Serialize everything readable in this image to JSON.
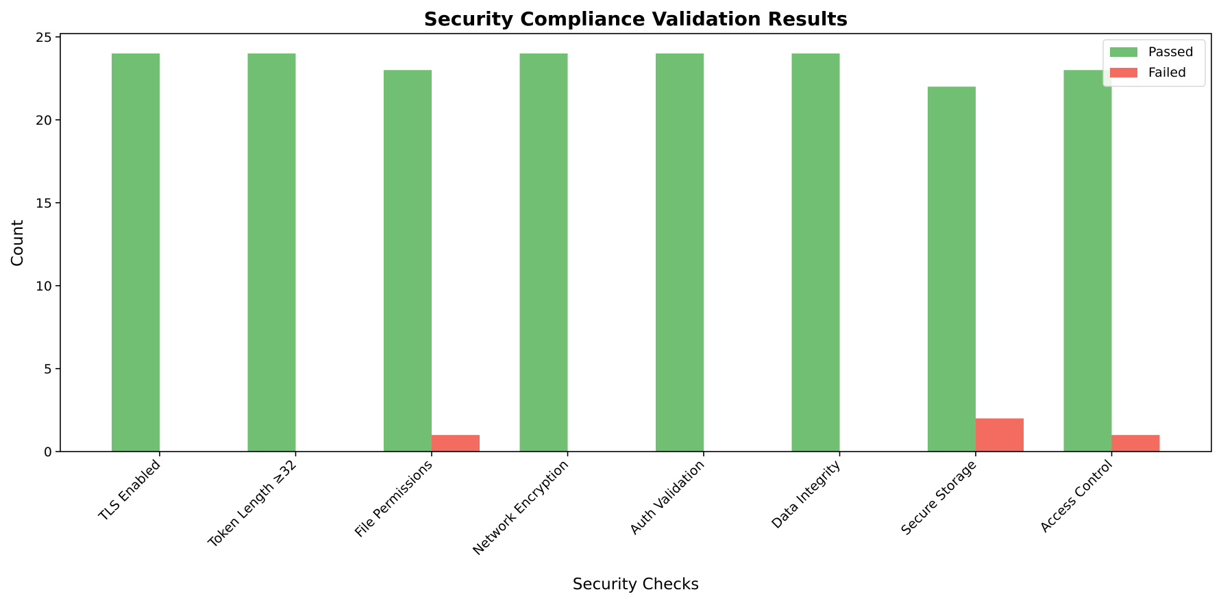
{
  "chart_data": {
    "type": "bar",
    "title": "Security Compliance Validation Results",
    "xlabel": "Security Checks",
    "ylabel": "Count",
    "categories": [
      "TLS Enabled",
      "Token Length ≥32",
      "File Permissions",
      "Network Encryption",
      "Auth Validation",
      "Data Integrity",
      "Secure Storage",
      "Access Control"
    ],
    "series": [
      {
        "name": "Passed",
        "values": [
          24,
          24,
          23,
          24,
          24,
          24,
          22,
          23
        ],
        "color": "#70bf73"
      },
      {
        "name": "Failed",
        "values": [
          0,
          0,
          1,
          0,
          0,
          0,
          2,
          1
        ],
        "color": "#f46b5f"
      }
    ],
    "ylim": [
      0,
      25.2
    ],
    "yticks": [
      0,
      5,
      10,
      15,
      20,
      25
    ],
    "grid": false,
    "legend_position": "top-right"
  }
}
